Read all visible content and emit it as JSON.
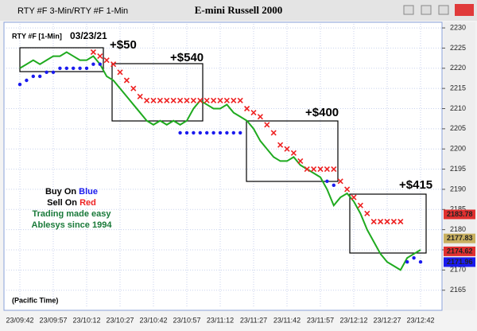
{
  "window_title": "RTY #F 3-Min/RTY #F 1-Min",
  "chart_data": {
    "type": "line",
    "title": "E-mini Russell 2000",
    "symbol_label": "RTY #F [1-Min]",
    "date": "03/23/21",
    "timezone_note": "(Pacific Time)",
    "annotations": [
      "+$50",
      "+$540",
      "+$400",
      "+$415"
    ],
    "notes": {
      "buy": "Buy On",
      "buy_word": "Blue",
      "sell": "Sell On",
      "sell_word": "Red",
      "line1": "Trading made easy",
      "line2": "Ablesys since 1994"
    },
    "categories": [
      "23/09:42",
      null,
      null,
      null,
      null,
      "23/09:57",
      null,
      null,
      null,
      null,
      "23/10:12",
      null,
      null,
      null,
      null,
      "23/10:27",
      null,
      null,
      null,
      null,
      "23/10:42",
      null,
      null,
      null,
      null,
      "23/10:57",
      null,
      null,
      null,
      null,
      "23/11:12",
      null,
      null,
      null,
      null,
      "23/11:27",
      null,
      null,
      null,
      null,
      "23/11:42",
      null,
      null,
      null,
      null,
      "23/11:57",
      null,
      null,
      null,
      null,
      "23/12:12",
      null,
      null,
      null,
      null,
      "23/12:27",
      null,
      null,
      null,
      null,
      "23/12:42"
    ],
    "series": [
      {
        "color": "#1faa1f",
        "values": [
          2220,
          2221,
          2222,
          2221,
          2222,
          2223,
          2223,
          2224,
          2223,
          2222,
          2222,
          2223,
          2221,
          2218,
          2217,
          2215,
          2213,
          2211,
          2209,
          2207,
          2206,
          2207,
          2206,
          2207,
          2206,
          2207,
          2210,
          2212,
          2211,
          2210,
          2210,
          2211,
          2209,
          2208,
          2207,
          2205,
          2202,
          2200,
          2198,
          2197,
          2197,
          2198,
          2196,
          2195,
          2194,
          2193,
          2190,
          2186,
          2188,
          2189,
          2187,
          2184,
          2180,
          2177,
          2174,
          2172,
          2171,
          2170,
          2173,
          2174,
          2175
        ]
      },
      {
        "color": "#ee2222",
        "values": [
          null,
          null,
          null,
          null,
          null,
          null,
          null,
          null,
          null,
          null,
          null,
          2224,
          2223,
          2222,
          2221,
          2219,
          2217,
          2215,
          2213,
          2212,
          2212,
          2212,
          2212,
          2212,
          2212,
          2212,
          2212,
          2212,
          2212,
          2212,
          2212,
          2212,
          2212,
          2212,
          2210,
          2209,
          2208,
          2206,
          2204,
          2201,
          2200,
          2199,
          2197,
          2195,
          2195,
          2195,
          2195,
          2195,
          2192,
          2190,
          2188,
          2186,
          2184,
          2182,
          2182,
          2182,
          2182,
          2182,
          null,
          null,
          null
        ]
      },
      {
        "color": "#1a1aee",
        "values": [
          2216,
          2217,
          2218,
          2218,
          2219,
          2219,
          2220,
          2220,
          2220,
          2220,
          2220,
          2221,
          2221,
          null,
          null,
          null,
          null,
          null,
          null,
          null,
          null,
          null,
          null,
          null,
          2204,
          2204,
          2204,
          2204,
          2204,
          2204,
          2204,
          2204,
          2204,
          2204,
          null,
          null,
          null,
          null,
          null,
          null,
          null,
          null,
          null,
          null,
          null,
          null,
          2192,
          2191,
          null,
          null,
          null,
          null,
          null,
          null,
          null,
          null,
          null,
          null,
          2172,
          2173,
          2172
        ]
      }
    ],
    "price_labels": [
      {
        "value": 2183.78,
        "color": "#e03030"
      },
      {
        "value": 2177.83,
        "color": "#c8b060"
      },
      {
        "value": 2174.62,
        "color": "#e03030"
      },
      {
        "value": 2171.96,
        "color": "#1a1aee"
      }
    ],
    "ylim": [
      2161,
      2231
    ],
    "yticks": [
      2165,
      2170,
      2175,
      2180,
      2185,
      2190,
      2195,
      2200,
      2205,
      2210,
      2215,
      2220,
      2225,
      2230
    ],
    "grid": true
  }
}
